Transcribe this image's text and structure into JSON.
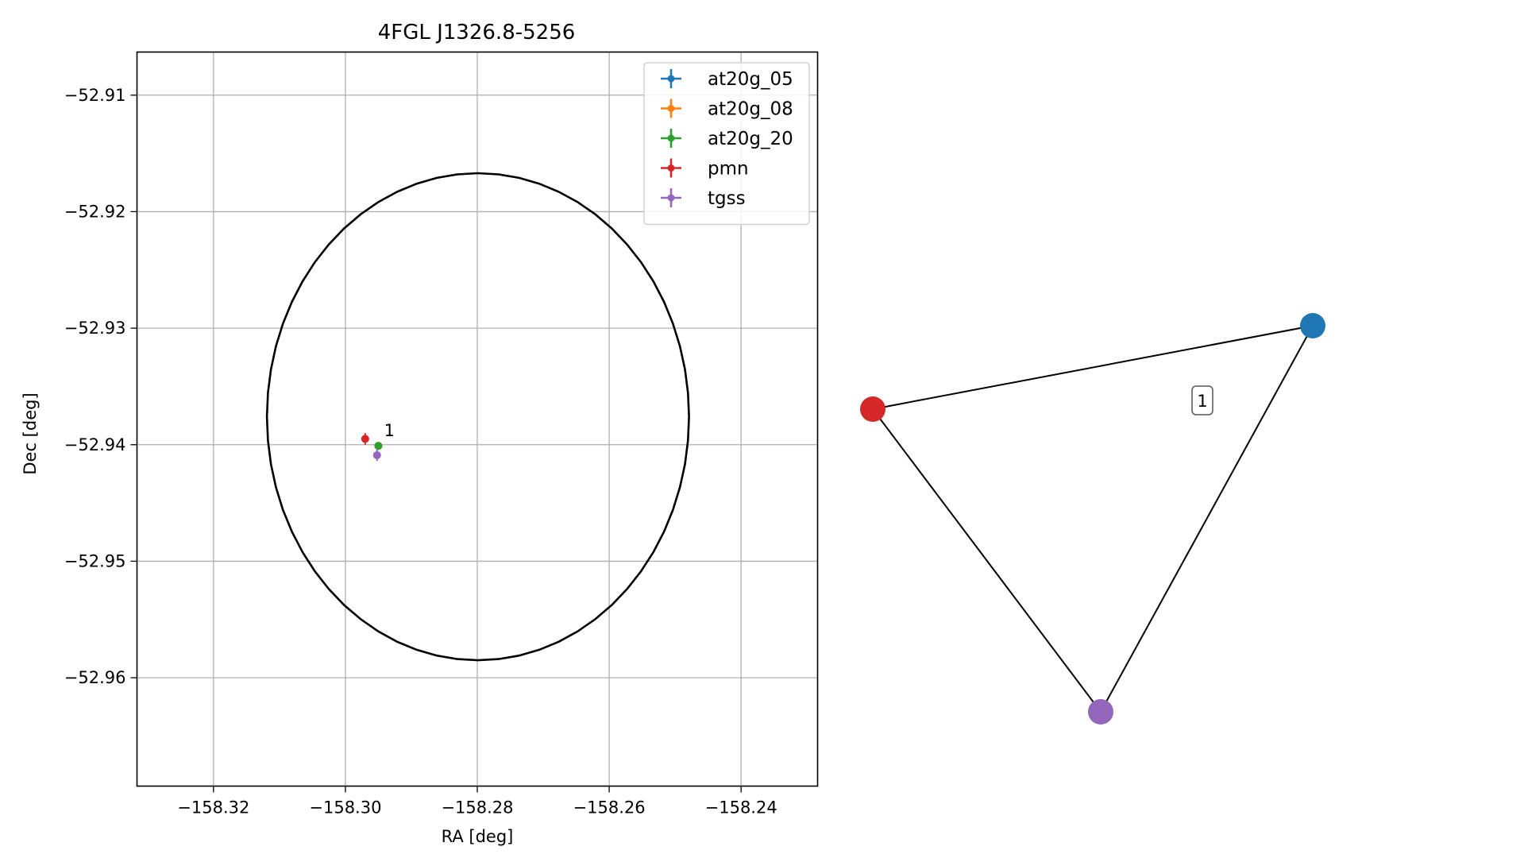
{
  "chart_data": [
    {
      "type": "scatter",
      "title": "4FGL J1326.8-5256",
      "xlabel": "RA [deg]",
      "ylabel": "Dec [deg]",
      "xlim": [
        -158.3316,
        -158.2284
      ],
      "ylim": [
        -52.9693,
        -52.9063
      ],
      "x_ticks": [
        -158.32,
        -158.3,
        -158.28,
        -158.26,
        -158.24
      ],
      "x_tick_labels": [
        "−158.32",
        "−158.30",
        "−158.28",
        "−158.26",
        "−158.24"
      ],
      "y_ticks": [
        -52.91,
        -52.92,
        -52.93,
        -52.94,
        -52.95,
        -52.96
      ],
      "y_tick_labels": [
        "−52.91",
        "−52.92",
        "−52.93",
        "−52.94",
        "−52.95",
        "−52.96"
      ],
      "grid": true,
      "legend_position": "top-right",
      "ellipse": {
        "center": [
          -158.2799,
          -52.9376
        ],
        "semi_axis_ra": 0.032,
        "semi_axis_dec": 0.0209,
        "color": "#000000"
      },
      "series": [
        {
          "name": "at20g_05",
          "color": "#1f77b4",
          "points": [
            [
              -158.295,
              -52.9401
            ]
          ]
        },
        {
          "name": "at20g_08",
          "color": "#ff7f0e",
          "points": [
            [
              -158.295,
              -52.9401
            ]
          ]
        },
        {
          "name": "at20g_20",
          "color": "#2ca02c",
          "points": [
            [
              -158.295,
              -52.9401
            ]
          ]
        },
        {
          "name": "pmn",
          "color": "#d62728",
          "points": [
            [
              -158.297,
              -52.9395
            ]
          ],
          "dec_err": 0.0005
        },
        {
          "name": "tgss",
          "color": "#9467bd",
          "points": [
            [
              -158.2952,
              -52.9409
            ]
          ],
          "dec_err": 0.0005
        }
      ],
      "annotations": [
        {
          "text": "1",
          "x": -158.2945,
          "y": -52.939
        }
      ]
    },
    {
      "type": "network",
      "nodes": [
        {
          "id": "at20g",
          "color": "#1f77b4"
        },
        {
          "id": "pmn",
          "color": "#d62728"
        },
        {
          "id": "tgss",
          "color": "#9467bd"
        }
      ],
      "edges": [
        [
          "pmn",
          "at20g"
        ],
        [
          "at20g",
          "tgss"
        ],
        [
          "tgss",
          "pmn"
        ]
      ],
      "edge_label": "1"
    }
  ]
}
